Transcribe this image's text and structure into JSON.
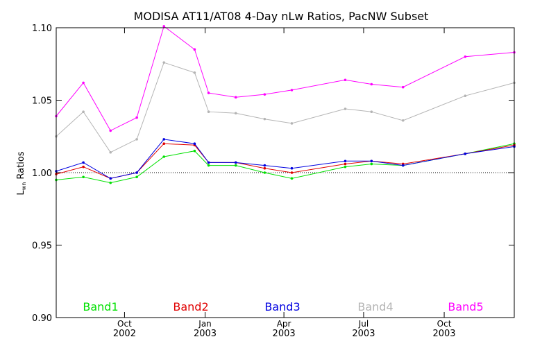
{
  "chart_data": {
    "type": "line",
    "title": "MODISA AT11/AT08 4-Day nLw Ratios, PacNW Subset",
    "ylabel": "L",
    "ylabel_sub": "wn",
    "ylabel_rest": " Ratios",
    "ylim": [
      0.9,
      1.1
    ],
    "xlim": [
      "2002-07-15",
      "2003-12-20"
    ],
    "yticks": [
      {
        "value": 0.9,
        "label": "0.90"
      },
      {
        "value": 0.95,
        "label": "0.95"
      },
      {
        "value": 1.0,
        "label": "1.00"
      },
      {
        "value": 1.05,
        "label": "1.05"
      },
      {
        "value": 1.1,
        "label": "1.10"
      }
    ],
    "xticks": [
      {
        "date": "2002-10-01",
        "month": "Oct",
        "year": "2002"
      },
      {
        "date": "2003-01-01",
        "month": "Jan",
        "year": "2003"
      },
      {
        "date": "2003-04-01",
        "month": "Apr",
        "year": "2003"
      },
      {
        "date": "2003-07-01",
        "month": "Jul",
        "year": "2003"
      },
      {
        "date": "2003-10-01",
        "month": "Oct",
        "year": "2003"
      }
    ],
    "reference_line": 1.0,
    "x": [
      "2002-07-15",
      "2002-08-15",
      "2002-09-15",
      "2002-10-15",
      "2002-11-15",
      "2002-12-20",
      "2003-01-05",
      "2003-02-05",
      "2003-03-10",
      "2003-04-10",
      "2003-06-10",
      "2003-07-10",
      "2003-08-15",
      "2003-10-25",
      "2003-12-20"
    ],
    "series": [
      {
        "name": "Band1",
        "color": "#00e000",
        "values": [
          0.995,
          0.997,
          0.993,
          0.997,
          1.011,
          1.015,
          1.005,
          1.005,
          1.0,
          0.996,
          1.004,
          1.006,
          1.005,
          1.013,
          1.02
        ]
      },
      {
        "name": "Band2",
        "color": "#e00000",
        "values": [
          0.999,
          1.004,
          0.996,
          1.0,
          1.02,
          1.019,
          1.007,
          1.007,
          1.003,
          1.0,
          1.006,
          1.008,
          1.006,
          1.013,
          1.019
        ]
      },
      {
        "name": "Band3",
        "color": "#0000e0",
        "values": [
          1.001,
          1.007,
          0.996,
          1.0,
          1.023,
          1.02,
          1.007,
          1.007,
          1.005,
          1.003,
          1.008,
          1.008,
          1.005,
          1.013,
          1.018
        ]
      },
      {
        "name": "Band4",
        "color": "#b4b4b4",
        "values": [
          1.025,
          1.042,
          1.014,
          1.023,
          1.076,
          1.069,
          1.042,
          1.041,
          1.037,
          1.034,
          1.044,
          1.042,
          1.036,
          1.053,
          1.062
        ]
      },
      {
        "name": "Band5",
        "color": "#ff00ff",
        "values": [
          1.039,
          1.062,
          1.029,
          1.038,
          1.101,
          1.085,
          1.055,
          1.052,
          1.054,
          1.057,
          1.064,
          1.061,
          1.059,
          1.08,
          1.083
        ]
      }
    ],
    "grid": false,
    "legend_placement": "bottom"
  }
}
